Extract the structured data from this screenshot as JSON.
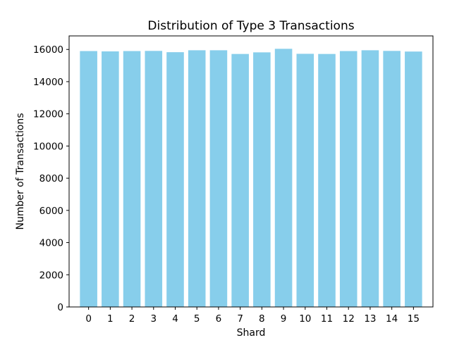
{
  "chart_data": {
    "type": "bar",
    "title": "Distribution of Type 3 Transactions",
    "xlabel": "Shard",
    "ylabel": "Number of Transactions",
    "categories": [
      "0",
      "1",
      "2",
      "3",
      "4",
      "5",
      "6",
      "7",
      "8",
      "9",
      "10",
      "11",
      "12",
      "13",
      "14",
      "15"
    ],
    "values": [
      15900,
      15880,
      15900,
      15910,
      15830,
      15950,
      15950,
      15720,
      15820,
      16040,
      15730,
      15720,
      15900,
      15950,
      15910,
      15870
    ],
    "yticks": [
      0,
      2000,
      4000,
      6000,
      8000,
      10000,
      12000,
      14000,
      16000
    ],
    "ylim": [
      0,
      16842
    ],
    "bar_color": "#87ceeb",
    "grid": false,
    "legend": "none"
  }
}
